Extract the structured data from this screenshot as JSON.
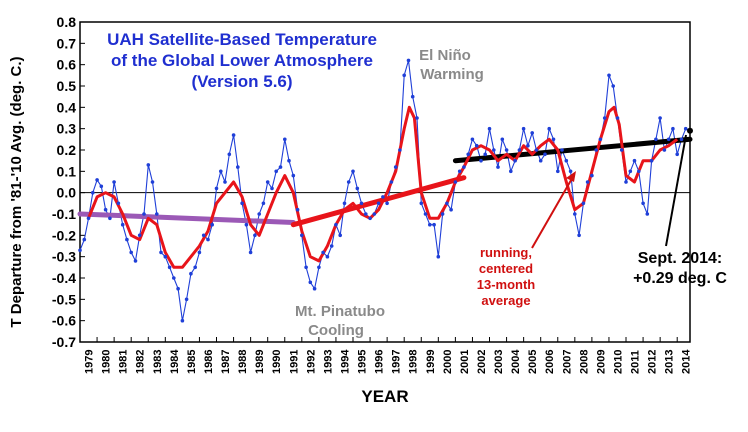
{
  "chart_data": {
    "type": "line",
    "title_lines": [
      "UAH Satellite-Based Temperature",
      "of the Global Lower Atmosphere",
      "(Version 5.6)"
    ],
    "xlabel": "YEAR",
    "ylabel": "T Departure from '81-'10 Avg. (deg. C.)",
    "xlim": [
      1979.0,
      2014.75
    ],
    "ylim": [
      -0.7,
      0.8
    ],
    "y_ticks": [
      "0.8",
      "0.7",
      "0.6",
      "0.5",
      "0.4",
      "0.3",
      "0.2",
      "0.1",
      "0.0",
      "-0.1",
      "-0.2",
      "-0.3",
      "-0.4",
      "-0.5",
      "-0.6",
      "-0.7"
    ],
    "x_ticks": [
      "1979",
      "1980",
      "1981",
      "1982",
      "1983",
      "1984",
      "1985",
      "1986",
      "1987",
      "1988",
      "1989",
      "1990",
      "1991",
      "1992",
      "1993",
      "1994",
      "1995",
      "1996",
      "1997",
      "1998",
      "1999",
      "2000",
      "2001",
      "2002",
      "2003",
      "2004",
      "2005",
      "2006",
      "2007",
      "2008",
      "2009",
      "2010",
      "2011",
      "2012",
      "2013",
      "2014"
    ],
    "grid": false,
    "colors": {
      "monthly": "#1f3fd8",
      "running": "#e8141a",
      "trend_1979_1991": "#9b59b6",
      "trend_1991_2001": "#e8141a",
      "trend_2001_2014": "#000000",
      "title": "#1f2fd0",
      "gray_annotation": "#8a8a8a",
      "red_annotation": "#d01010"
    },
    "series": [
      {
        "style": "line-with-points",
        "x": [
          1979.0,
          1979.25,
          1979.5,
          1979.75,
          1980.0,
          1980.25,
          1980.5,
          1980.75,
          1981.0,
          1981.25,
          1981.5,
          1981.75,
          1982.0,
          1982.25,
          1982.5,
          1982.75,
          1983.0,
          1983.25,
          1983.5,
          1983.75,
          1984.0,
          1984.25,
          1984.5,
          1984.75,
          1985.0,
          1985.25,
          1985.5,
          1985.75,
          1986.0,
          1986.25,
          1986.5,
          1986.75,
          1987.0,
          1987.25,
          1987.5,
          1987.75,
          1988.0,
          1988.25,
          1988.5,
          1988.75,
          1989.0,
          1989.25,
          1989.5,
          1989.75,
          1990.0,
          1990.25,
          1990.5,
          1990.75,
          1991.0,
          1991.25,
          1991.5,
          1991.75,
          1992.0,
          1992.25,
          1992.5,
          1992.75,
          1993.0,
          1993.25,
          1993.5,
          1993.75,
          1994.0,
          1994.25,
          1994.5,
          1994.75,
          1995.0,
          1995.25,
          1995.5,
          1995.75,
          1996.0,
          1996.25,
          1996.5,
          1996.75,
          1997.0,
          1997.25,
          1997.5,
          1997.75,
          1998.0,
          1998.25,
          1998.5,
          1998.75,
          1999.0,
          1999.25,
          1999.5,
          1999.75,
          2000.0,
          2000.25,
          2000.5,
          2000.75,
          2001.0,
          2001.25,
          2001.5,
          2001.75,
          2002.0,
          2002.25,
          2002.5,
          2002.75,
          2003.0,
          2003.25,
          2003.5,
          2003.75,
          2004.0,
          2004.25,
          2004.5,
          2004.75,
          2005.0,
          2005.25,
          2005.5,
          2005.75,
          2006.0,
          2006.25,
          2006.5,
          2006.75,
          2007.0,
          2007.25,
          2007.5,
          2007.75,
          2008.0,
          2008.25,
          2008.5,
          2008.75,
          2009.0,
          2009.25,
          2009.5,
          2009.75,
          2010.0,
          2010.25,
          2010.5,
          2010.75,
          2011.0,
          2011.25,
          2011.5,
          2011.75,
          2012.0,
          2012.25,
          2012.5,
          2012.75,
          2013.0,
          2013.25,
          2013.5,
          2013.75,
          2014.0,
          2014.25,
          2014.5,
          2014.75
        ],
        "y": [
          -0.27,
          -0.22,
          -0.12,
          0.0,
          0.06,
          0.03,
          -0.08,
          -0.12,
          0.05,
          -0.05,
          -0.15,
          -0.22,
          -0.28,
          -0.32,
          -0.2,
          -0.1,
          0.13,
          0.05,
          -0.1,
          -0.28,
          -0.3,
          -0.35,
          -0.4,
          -0.45,
          -0.6,
          -0.5,
          -0.38,
          -0.35,
          -0.28,
          -0.2,
          -0.22,
          -0.15,
          0.02,
          0.1,
          0.05,
          0.18,
          0.27,
          0.12,
          -0.05,
          -0.15,
          -0.28,
          -0.2,
          -0.1,
          -0.05,
          0.05,
          0.02,
          0.1,
          0.12,
          0.25,
          0.15,
          0.08,
          -0.08,
          -0.2,
          -0.35,
          -0.42,
          -0.45,
          -0.35,
          -0.28,
          -0.3,
          -0.25,
          -0.15,
          -0.2,
          -0.05,
          0.05,
          0.1,
          0.02,
          -0.05,
          -0.1,
          -0.12,
          -0.1,
          -0.05,
          -0.02,
          -0.05,
          0.05,
          0.12,
          0.2,
          0.55,
          0.62,
          0.45,
          0.35,
          -0.05,
          -0.1,
          -0.15,
          -0.15,
          -0.3,
          -0.1,
          -0.05,
          -0.08,
          0.05,
          0.1,
          0.12,
          0.18,
          0.25,
          0.22,
          0.15,
          0.18,
          0.3,
          0.2,
          0.12,
          0.25,
          0.2,
          0.1,
          0.15,
          0.2,
          0.3,
          0.22,
          0.28,
          0.2,
          0.15,
          0.18,
          0.3,
          0.25,
          0.1,
          0.2,
          0.15,
          0.1,
          -0.1,
          -0.2,
          -0.05,
          0.05,
          0.08,
          0.2,
          0.25,
          0.35,
          0.55,
          0.5,
          0.35,
          0.2,
          0.05,
          0.1,
          0.15,
          0.1,
          -0.05,
          -0.1,
          0.15,
          0.25,
          0.35,
          0.2,
          0.25,
          0.3,
          0.18,
          0.25,
          0.3,
          0.29
        ]
      },
      {
        "style": "smooth-line",
        "x": [
          1979.5,
          1980.0,
          1980.5,
          1981.0,
          1981.5,
          1982.0,
          1982.5,
          1983.0,
          1983.5,
          1984.0,
          1984.5,
          1985.0,
          1985.5,
          1986.0,
          1986.5,
          1987.0,
          1987.5,
          1988.0,
          1988.5,
          1989.0,
          1989.5,
          1990.0,
          1990.5,
          1991.0,
          1991.5,
          1992.0,
          1992.5,
          1993.0,
          1993.5,
          1994.0,
          1994.5,
          1995.0,
          1995.5,
          1996.0,
          1996.5,
          1997.0,
          1997.5,
          1998.0,
          1998.3,
          1998.6,
          1999.0,
          1999.5,
          2000.0,
          2000.5,
          2001.0,
          2001.5,
          2002.0,
          2002.5,
          2003.0,
          2003.5,
          2004.0,
          2004.5,
          2005.0,
          2005.5,
          2006.0,
          2006.5,
          2007.0,
          2007.5,
          2008.0,
          2008.5,
          2009.0,
          2009.5,
          2010.0,
          2010.3,
          2010.6,
          2011.0,
          2011.5,
          2012.0,
          2012.5,
          2013.0,
          2013.5,
          2014.0
        ],
        "y": [
          -0.12,
          -0.02,
          0.0,
          -0.02,
          -0.1,
          -0.2,
          -0.22,
          -0.12,
          -0.15,
          -0.28,
          -0.35,
          -0.35,
          -0.3,
          -0.25,
          -0.18,
          -0.05,
          0.0,
          0.05,
          -0.02,
          -0.15,
          -0.2,
          -0.1,
          0.0,
          0.08,
          0.0,
          -0.18,
          -0.3,
          -0.32,
          -0.25,
          -0.15,
          -0.08,
          -0.05,
          -0.1,
          -0.12,
          -0.08,
          0.0,
          0.1,
          0.3,
          0.4,
          0.35,
          0.0,
          -0.12,
          -0.12,
          -0.05,
          0.05,
          0.12,
          0.2,
          0.22,
          0.2,
          0.15,
          0.18,
          0.15,
          0.22,
          0.18,
          0.22,
          0.25,
          0.2,
          0.05,
          -0.08,
          -0.05,
          0.1,
          0.25,
          0.38,
          0.4,
          0.32,
          0.08,
          0.05,
          0.15,
          0.15,
          0.2,
          0.22,
          0.25
        ]
      }
    ],
    "trend_lines": [
      {
        "x": [
          1979.0,
          1991.5
        ],
        "y": [
          -0.1,
          -0.14
        ]
      },
      {
        "x": [
          1991.5,
          2001.5
        ],
        "y": [
          -0.15,
          0.07
        ]
      },
      {
        "x": [
          2001.0,
          2014.75
        ],
        "y": [
          0.15,
          0.25
        ]
      }
    ],
    "annotations": [
      {
        "text_lines": [
          "El Niño",
          "Warming"
        ]
      },
      {
        "text_lines": [
          "Mt. Pinatubo",
          "Cooling"
        ]
      },
      {
        "text_lines": [
          "running,",
          "centered",
          "13-month",
          "average"
        ]
      },
      {
        "text_lines": [
          "Sept. 2014:",
          "+0.29 deg. C"
        ]
      }
    ]
  }
}
